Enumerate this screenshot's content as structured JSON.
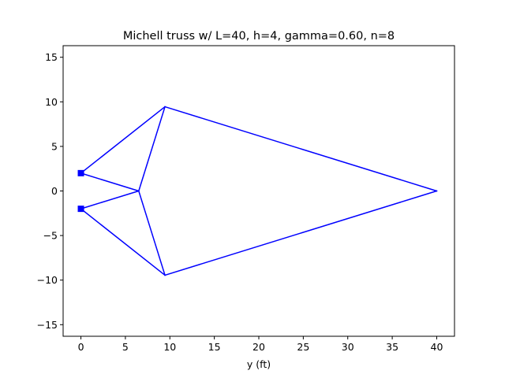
{
  "chart_data": {
    "type": "line",
    "title": "Michell truss w/ L=40, h=4, gamma=0.60, n=8",
    "xlabel": "y (ft)",
    "ylabel": "",
    "xlim": [
      -2,
      42
    ],
    "ylim": [
      -16.3,
      16.3
    ],
    "xticks": [
      0,
      5,
      10,
      15,
      20,
      25,
      30,
      35,
      40
    ],
    "yticks": [
      -15,
      -10,
      -5,
      0,
      5,
      10,
      15
    ],
    "grid": false,
    "legend": "none",
    "series_color": "#0000ff",
    "members": [
      {
        "x": [
          0,
          9.45
        ],
        "y": [
          2,
          9.45
        ]
      },
      {
        "x": [
          9.45,
          40
        ],
        "y": [
          9.45,
          0
        ]
      },
      {
        "x": [
          0,
          6.5
        ],
        "y": [
          2,
          0
        ]
      },
      {
        "x": [
          6.5,
          9.45
        ],
        "y": [
          0,
          9.45
        ]
      },
      {
        "x": [
          6.5,
          9.45
        ],
        "y": [
          0,
          -9.45
        ]
      },
      {
        "x": [
          0,
          6.5
        ],
        "y": [
          -2,
          0
        ]
      },
      {
        "x": [
          0,
          9.45
        ],
        "y": [
          -2,
          -9.45
        ]
      },
      {
        "x": [
          9.45,
          40
        ],
        "y": [
          -9.45,
          0
        ]
      }
    ],
    "supports": {
      "marker": "square",
      "points": [
        {
          "x": 0,
          "y": 2
        },
        {
          "x": 0,
          "y": -2
        }
      ]
    }
  }
}
